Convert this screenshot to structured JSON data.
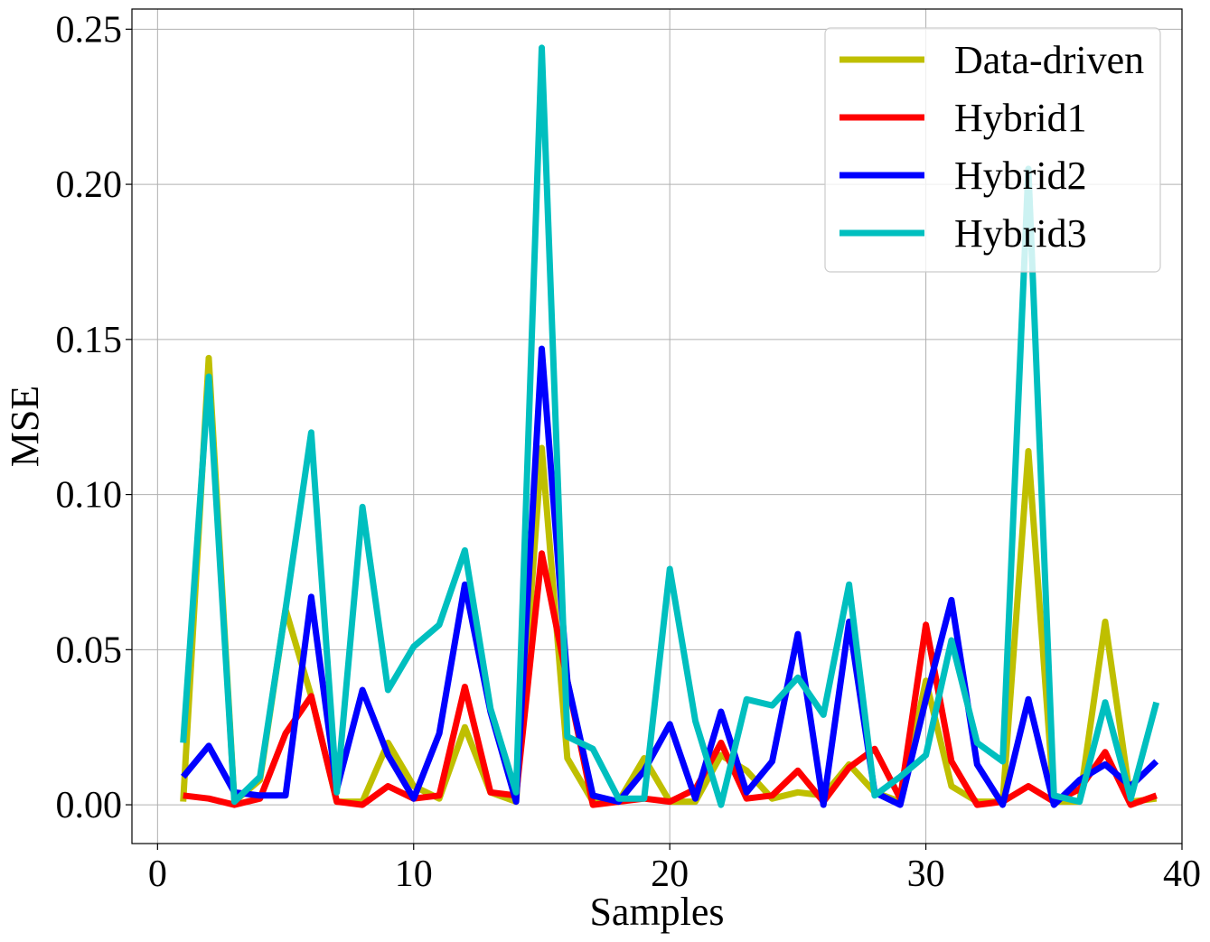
{
  "chart_data": {
    "type": "line",
    "title": "",
    "xlabel": "Samples",
    "ylabel": "MSE",
    "xlim": [
      -1,
      40
    ],
    "ylim": [
      -0.0125,
      0.2565
    ],
    "xticks": [
      0,
      10,
      20,
      30,
      40
    ],
    "xtick_labels": [
      "0",
      "10",
      "20",
      "30",
      "40"
    ],
    "yticks": [
      0.0,
      0.05,
      0.1,
      0.15,
      0.2,
      0.25
    ],
    "ytick_labels": [
      "0.00",
      "0.05",
      "0.10",
      "0.15",
      "0.20",
      "0.25"
    ],
    "grid": true,
    "legend_position": "top-right",
    "x": [
      1,
      2,
      3,
      4,
      5,
      6,
      7,
      8,
      9,
      10,
      11,
      12,
      13,
      14,
      15,
      16,
      17,
      18,
      19,
      20,
      21,
      22,
      23,
      24,
      25,
      26,
      27,
      28,
      29,
      30,
      31,
      32,
      33,
      34,
      35,
      36,
      37,
      38,
      39
    ],
    "series": [
      {
        "name": "Data-driven",
        "color": "#bfbf00",
        "values": [
          0.001,
          0.144,
          0.001,
          0.008,
          0.063,
          0.035,
          0.001,
          0.001,
          0.02,
          0.006,
          0.002,
          0.025,
          0.004,
          0.001,
          0.115,
          0.015,
          0.001,
          0.001,
          0.015,
          0.001,
          0.001,
          0.016,
          0.011,
          0.002,
          0.004,
          0.003,
          0.013,
          0.004,
          0.001,
          0.04,
          0.006,
          0.001,
          0.001,
          0.114,
          0.001,
          0.001,
          0.059,
          0.001,
          0.002
        ]
      },
      {
        "name": "Hybrid1",
        "color": "#ff0000",
        "values": [
          0.003,
          0.002,
          0.0,
          0.002,
          0.023,
          0.035,
          0.001,
          0.0,
          0.006,
          0.002,
          0.003,
          0.038,
          0.004,
          0.003,
          0.081,
          0.04,
          0.0,
          0.001,
          0.002,
          0.001,
          0.005,
          0.02,
          0.002,
          0.003,
          0.011,
          0.001,
          0.012,
          0.018,
          0.002,
          0.058,
          0.014,
          0.0,
          0.001,
          0.006,
          0.001,
          0.005,
          0.017,
          0.0,
          0.003
        ]
      },
      {
        "name": "Hybrid2",
        "color": "#0000ff",
        "values": [
          0.009,
          0.019,
          0.004,
          0.003,
          0.003,
          0.067,
          0.005,
          0.037,
          0.016,
          0.002,
          0.023,
          0.071,
          0.03,
          0.001,
          0.147,
          0.04,
          0.003,
          0.001,
          0.011,
          0.026,
          0.002,
          0.03,
          0.004,
          0.014,
          0.055,
          0.0,
          0.059,
          0.004,
          0.0,
          0.034,
          0.066,
          0.013,
          0.0,
          0.034,
          0.0,
          0.008,
          0.013,
          0.006,
          0.014
        ]
      },
      {
        "name": "Hybrid3",
        "color": "#00bfbf",
        "values": [
          0.02,
          0.138,
          0.001,
          0.009,
          0.063,
          0.12,
          0.004,
          0.096,
          0.037,
          0.051,
          0.058,
          0.082,
          0.031,
          0.004,
          0.244,
          0.022,
          0.018,
          0.002,
          0.002,
          0.076,
          0.027,
          0.0,
          0.034,
          0.032,
          0.041,
          0.029,
          0.071,
          0.003,
          0.009,
          0.016,
          0.053,
          0.02,
          0.014,
          0.205,
          0.003,
          0.001,
          0.033,
          0.002,
          0.033
        ]
      }
    ]
  }
}
